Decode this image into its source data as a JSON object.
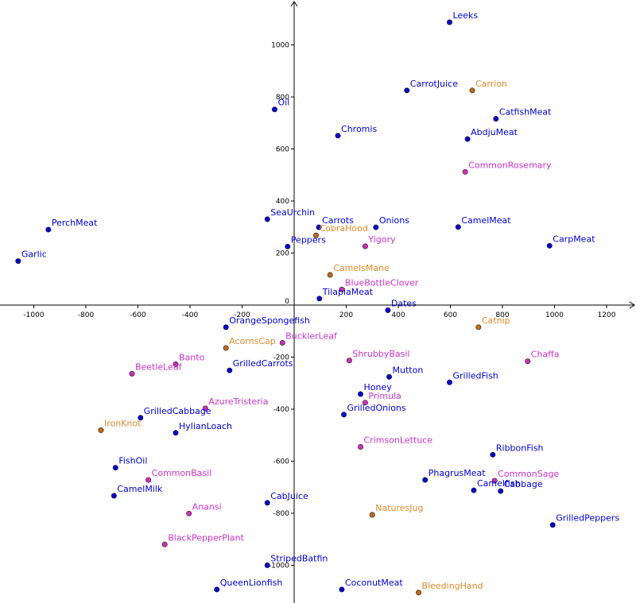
{
  "chart_data": {
    "type": "scatter",
    "title": "",
    "xlabel": "",
    "ylabel": "",
    "xlim": [
      -1130,
      1300
    ],
    "ylim": [
      -1150,
      1150
    ],
    "grid": false,
    "x_ticks": [
      -1000,
      -800,
      -600,
      -400,
      -200,
      200,
      400,
      600,
      800,
      1000,
      1200
    ],
    "y_ticks": [
      1000,
      800,
      600,
      400,
      200,
      0,
      -200,
      -400,
      -600,
      -800,
      -1000
    ],
    "categories": {
      "blue": {
        "color": "#0000cc",
        "label_color": "#0000cc"
      },
      "magenta": {
        "color": "#cc2eb8",
        "label_color": "#cc33cc"
      },
      "orange": {
        "color": "#c06a1a",
        "label_color": "#e08a2a"
      }
    },
    "points": [
      {
        "name": "Leeks",
        "x": 597,
        "y": 1087,
        "group": "blue"
      },
      {
        "name": "CarrotJuice",
        "x": 433,
        "y": 825,
        "group": "blue"
      },
      {
        "name": "Carrion",
        "x": 684,
        "y": 825,
        "group": "orange"
      },
      {
        "name": "Oil",
        "x": -75,
        "y": 752,
        "group": "blue"
      },
      {
        "name": "CatfishMeat",
        "x": 775,
        "y": 716,
        "group": "blue"
      },
      {
        "name": "Chromis",
        "x": 168,
        "y": 651,
        "group": "blue"
      },
      {
        "name": "AbdjuMeat",
        "x": 666,
        "y": 638,
        "group": "blue"
      },
      {
        "name": "CommonRosemary",
        "x": 657,
        "y": 512,
        "group": "magenta"
      },
      {
        "name": "SeaUrchin",
        "x": -103,
        "y": 330,
        "group": "blue"
      },
      {
        "name": "PerchMeat",
        "x": -944,
        "y": 290,
        "group": "blue"
      },
      {
        "name": "Carrots",
        "x": 95,
        "y": 299,
        "group": "blue"
      },
      {
        "name": "Onions",
        "x": 314,
        "y": 299,
        "group": "blue"
      },
      {
        "name": "CamelMeat",
        "x": 630,
        "y": 300,
        "group": "blue"
      },
      {
        "name": "CobraHood",
        "x": 84,
        "y": 268,
        "group": "orange"
      },
      {
        "name": "Yigory",
        "x": 273,
        "y": 226,
        "group": "magenta"
      },
      {
        "name": "CarpMeat",
        "x": 981,
        "y": 228,
        "group": "blue"
      },
      {
        "name": "Peppers",
        "x": -25,
        "y": 225,
        "group": "blue"
      },
      {
        "name": "Garlic",
        "x": -1060,
        "y": 169,
        "group": "blue"
      },
      {
        "name": "CamelsMane",
        "x": 138,
        "y": 116,
        "group": "orange"
      },
      {
        "name": "BlueBottleClover",
        "x": 183,
        "y": 60,
        "group": "magenta"
      },
      {
        "name": "TilapiaMeat",
        "x": 97,
        "y": 25,
        "group": "blue"
      },
      {
        "name": "Dates",
        "x": 360,
        "y": -20,
        "group": "blue"
      },
      {
        "name": "OrangeSpongefish",
        "x": -262,
        "y": -85,
        "group": "blue"
      },
      {
        "name": "Catnip",
        "x": 708,
        "y": -85,
        "group": "orange"
      },
      {
        "name": "BucklerLeaf",
        "x": -45,
        "y": -145,
        "group": "magenta"
      },
      {
        "name": "AcornsCap",
        "x": -262,
        "y": -165,
        "group": "orange"
      },
      {
        "name": "ShrubbyBasil",
        "x": 212,
        "y": -213,
        "group": "magenta"
      },
      {
        "name": "Chaffa",
        "x": 897,
        "y": -216,
        "group": "magenta"
      },
      {
        "name": "Banto",
        "x": -455,
        "y": -227,
        "group": "magenta"
      },
      {
        "name": "BeetleLeaf",
        "x": -623,
        "y": -264,
        "group": "magenta"
      },
      {
        "name": "GrilledCarrots",
        "x": -248,
        "y": -251,
        "group": "blue"
      },
      {
        "name": "Mutton",
        "x": 365,
        "y": -276,
        "group": "blue"
      },
      {
        "name": "GrilledFish",
        "x": 597,
        "y": -297,
        "group": "blue"
      },
      {
        "name": "Honey",
        "x": 255,
        "y": -342,
        "group": "blue"
      },
      {
        "name": "Primula",
        "x": 273,
        "y": -375,
        "group": "magenta"
      },
      {
        "name": "AzureTristeria",
        "x": -341,
        "y": -397,
        "group": "magenta"
      },
      {
        "name": "GrilledOnions",
        "x": 191,
        "y": -421,
        "group": "blue"
      },
      {
        "name": "GrilledCabbage",
        "x": -590,
        "y": -433,
        "group": "blue"
      },
      {
        "name": "HylianLoach",
        "x": -455,
        "y": -491,
        "group": "blue"
      },
      {
        "name": "IronKnot",
        "x": -742,
        "y": -481,
        "group": "orange"
      },
      {
        "name": "CrimsonLettuce",
        "x": 255,
        "y": -545,
        "group": "magenta"
      },
      {
        "name": "RibbonFish",
        "x": 763,
        "y": -575,
        "group": "blue"
      },
      {
        "name": "FishOil",
        "x": -686,
        "y": -625,
        "group": "blue"
      },
      {
        "name": "CommonBasil",
        "x": -560,
        "y": -672,
        "group": "magenta"
      },
      {
        "name": "PhagrusMeat",
        "x": 503,
        "y": -672,
        "group": "blue"
      },
      {
        "name": "CommonSage",
        "x": 770,
        "y": -675,
        "group": "magenta"
      },
      {
        "name": "Cabbage",
        "x": 793,
        "y": -715,
        "group": "blue"
      },
      {
        "name": "Camelfish",
        "x": 690,
        "y": -712,
        "group": "blue"
      },
      {
        "name": "CamelMilk",
        "x": -692,
        "y": -733,
        "group": "blue"
      },
      {
        "name": "CabJuice",
        "x": -103,
        "y": -760,
        "group": "blue"
      },
      {
        "name": "Anansi",
        "x": -404,
        "y": -801,
        "group": "magenta"
      },
      {
        "name": "NaturesJug",
        "x": 300,
        "y": -806,
        "group": "orange"
      },
      {
        "name": "GrilledPeppers",
        "x": 993,
        "y": -845,
        "group": "blue"
      },
      {
        "name": "BlackPepperPlant",
        "x": -497,
        "y": -920,
        "group": "magenta"
      },
      {
        "name": "StripedBatfin",
        "x": -103,
        "y": -1000,
        "group": "blue"
      },
      {
        "name": "QueenLionfish",
        "x": -297,
        "y": -1093,
        "group": "blue"
      },
      {
        "name": "CoconutMeat",
        "x": 183,
        "y": -1093,
        "group": "blue"
      },
      {
        "name": "BleedingHand",
        "x": 478,
        "y": -1105,
        "group": "orange"
      }
    ]
  }
}
